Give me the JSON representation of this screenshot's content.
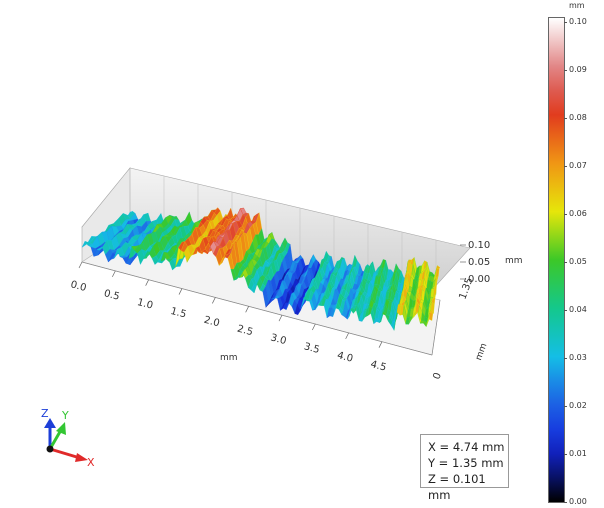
{
  "viewport": {
    "x_axis": {
      "unit": "mm",
      "ticks": [
        "0.0",
        "0.5",
        "1.0",
        "1.5",
        "2.0",
        "2.5",
        "3.0",
        "3.5",
        "4.0",
        "4.5"
      ]
    },
    "y_axis": {
      "unit": "mm",
      "ticks": [
        "0",
        "1.35"
      ]
    },
    "z_axis": {
      "unit": "mm",
      "ticks": [
        "0.10",
        "0.05",
        "0.00"
      ]
    }
  },
  "colorbar": {
    "unit": "mm",
    "ticks": [
      "0.10",
      "0.09",
      "0.08",
      "0.07",
      "0.06",
      "0.05",
      "0.04",
      "0.03",
      "0.02",
      "0.01",
      "0.00"
    ],
    "range": [
      0.0,
      0.1
    ]
  },
  "triad": {
    "x": "X",
    "y": "Y",
    "z": "Z"
  },
  "readout": {
    "x": "X = 4.74 mm",
    "y": "Y = 1.35 mm",
    "z": "Z = 0.101 mm"
  }
}
